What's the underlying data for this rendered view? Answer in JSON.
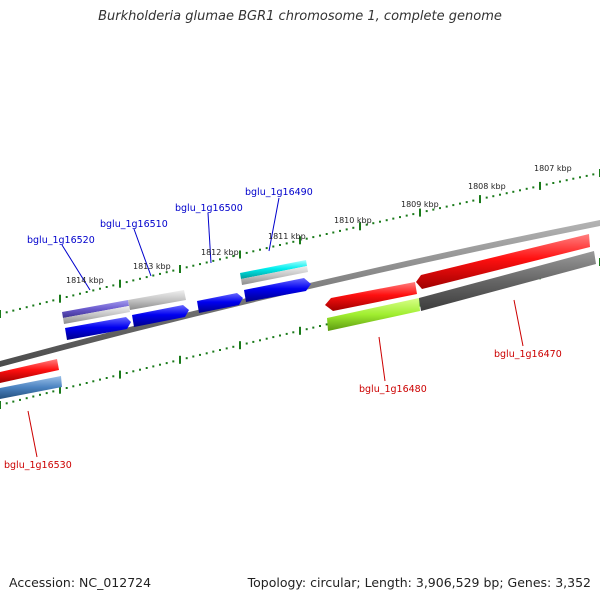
{
  "title": "Burkholderia glumae BGR1 chromosome 1, complete genome",
  "accession": "Accession: NC_012724",
  "summary": "Topology: circular; Length: 3,906,529 bp; Genes: 3,352",
  "colors": {
    "backbone": "#808080",
    "tick": "#1a7a1a",
    "forward_label": "#0000cc",
    "reverse_label": "#cc0000"
  },
  "scale_labels": [
    "1807 kbp",
    "1808 kbp",
    "1809 kbp",
    "1810 kbp",
    "1811 kbp",
    "1812 kbp",
    "1813 kbp",
    "1814 kbp"
  ],
  "genes_forward": [
    {
      "name": "bglu_1g16490",
      "color": "#00e0e0"
    },
    {
      "name": "bglu_1g16500",
      "color": "#0000ee"
    },
    {
      "name": "bglu_1g16510",
      "color": "#0000ee"
    },
    {
      "name": "bglu_1g16520",
      "color": "#6a5acd"
    }
  ],
  "genes_reverse": [
    {
      "name": "bglu_1g16470",
      "color": "#ee0000"
    },
    {
      "name": "bglu_1g16480",
      "color": "#ee0000"
    },
    {
      "name": "bglu_1g16530",
      "color": "#ee0000"
    }
  ]
}
